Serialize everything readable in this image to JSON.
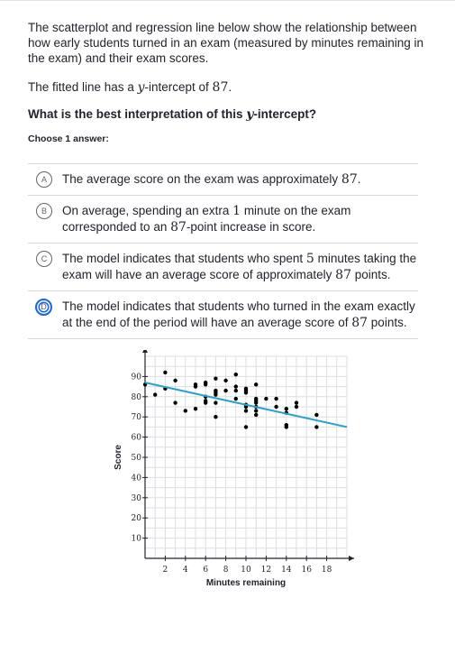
{
  "prompt": "The scatterplot and regression line below show the relationship between how early students turned in an exam (measured by minutes remaining in the exam) and their exam scores.",
  "intercept": {
    "prefix": "The fitted line has a ",
    "var": "y",
    "middle": "-intercept of ",
    "value": "87",
    "suffix": "."
  },
  "question": {
    "prefix": "What is the best interpretation of this ",
    "var": "y",
    "suffix": "-intercept?"
  },
  "choose_label": "Choose 1 answer:",
  "choices": [
    {
      "letter": "A",
      "parts": [
        "The average score on the exam was approximately ",
        "87",
        "."
      ]
    },
    {
      "letter": "B",
      "parts": [
        "On average, spending an extra ",
        "1",
        " minute on the exam corresponded to an ",
        "87",
        "-point increase in score."
      ]
    },
    {
      "letter": "C",
      "parts": [
        "The model indicates that students who spent ",
        "5",
        " minutes taking the exam will have an average score of approximately ",
        "87",
        " points."
      ]
    },
    {
      "letter": "D",
      "parts": [
        "The model indicates that students who turned in the exam exactly at the end of the period will have an average score of ",
        "87",
        " points."
      ],
      "selected": true
    }
  ],
  "colors": {
    "accent": "#1865f2",
    "regression_line": "#29a3cc",
    "grid": "#dcdde0",
    "points": "#000000"
  },
  "chart_data": {
    "type": "scatter",
    "xlabel": "Minutes remaining",
    "ylabel": "Score",
    "xlim": [
      0,
      20
    ],
    "ylim": [
      0,
      100
    ],
    "x_ticks": [
      2,
      4,
      6,
      8,
      10,
      12,
      14,
      16,
      18
    ],
    "y_ticks": [
      10,
      20,
      30,
      40,
      50,
      60,
      70,
      80,
      90
    ],
    "grid": true,
    "regression": {
      "intercept": 87,
      "slope": -1.1
    },
    "points": [
      [
        0,
        86
      ],
      [
        1,
        81
      ],
      [
        2,
        92
      ],
      [
        2,
        84
      ],
      [
        3,
        88
      ],
      [
        3,
        77
      ],
      [
        4,
        73
      ],
      [
        5,
        74
      ],
      [
        5,
        86
      ],
      [
        5,
        85
      ],
      [
        6,
        87
      ],
      [
        6,
        86
      ],
      [
        6,
        80
      ],
      [
        6,
        78
      ],
      [
        6,
        77
      ],
      [
        7,
        89
      ],
      [
        7,
        83
      ],
      [
        7,
        82
      ],
      [
        7,
        81
      ],
      [
        7,
        77
      ],
      [
        7,
        70
      ],
      [
        8,
        83
      ],
      [
        8,
        88
      ],
      [
        9,
        91
      ],
      [
        9,
        85
      ],
      [
        9,
        83
      ],
      [
        9,
        79
      ],
      [
        10,
        84
      ],
      [
        10,
        83
      ],
      [
        10,
        82
      ],
      [
        10,
        76
      ],
      [
        10,
        75
      ],
      [
        10,
        73
      ],
      [
        10,
        65
      ],
      [
        11,
        86
      ],
      [
        11,
        79
      ],
      [
        11,
        78
      ],
      [
        11,
        77
      ],
      [
        11,
        75
      ],
      [
        11,
        73
      ],
      [
        11,
        71
      ],
      [
        12,
        79
      ],
      [
        13,
        79
      ],
      [
        13,
        75
      ],
      [
        14,
        74
      ],
      [
        14,
        72
      ],
      [
        14,
        66
      ],
      [
        14,
        65
      ],
      [
        15,
        77
      ],
      [
        15,
        75
      ],
      [
        17,
        71
      ],
      [
        17,
        65
      ]
    ]
  }
}
